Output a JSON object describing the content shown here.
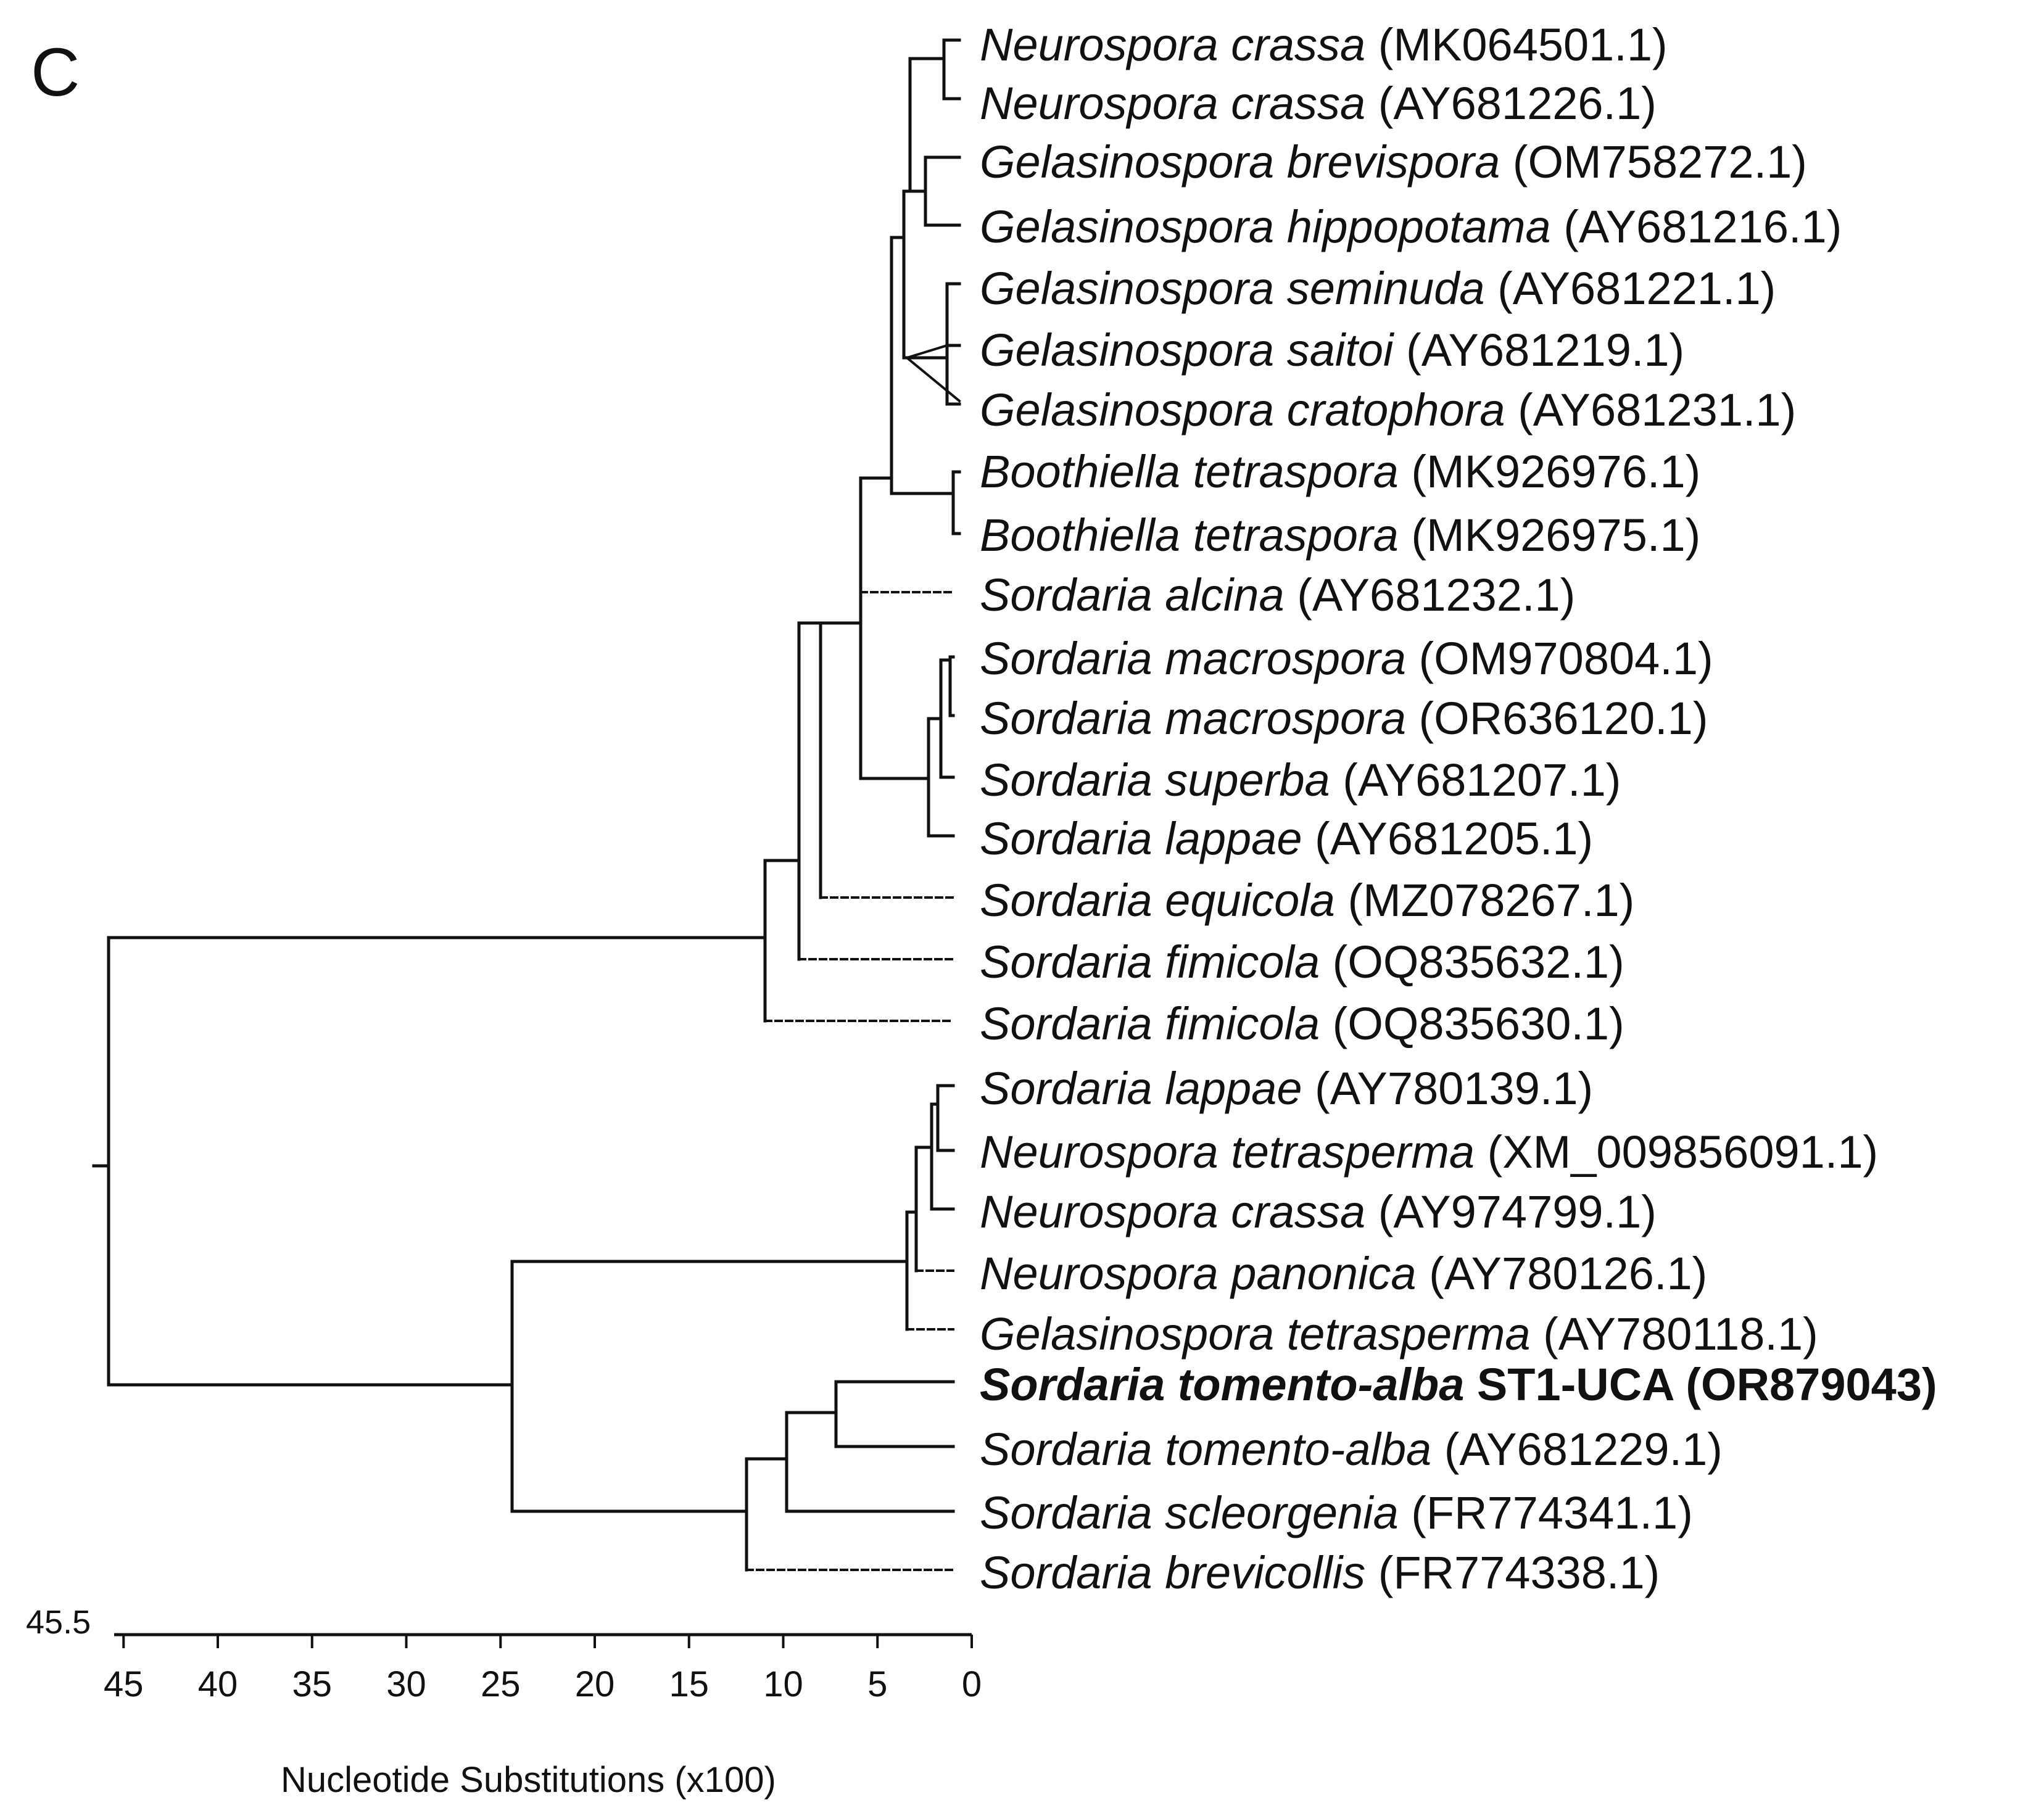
{
  "panel_label": "C",
  "taxa": [
    {
      "id": "t1",
      "genus_species": "Neurospora crassa",
      "accession": "(MK064501.1)"
    },
    {
      "id": "t2",
      "genus_species": "Neurospora crassa",
      "accession": "(AY681226.1)"
    },
    {
      "id": "t3",
      "genus_species": "Gelasinospora brevispora",
      "accession": "(OM758272.1)"
    },
    {
      "id": "t4",
      "genus_species": "Gelasinospora hippopotama",
      "accession": "(AY681216.1)"
    },
    {
      "id": "t5",
      "genus_species": "Gelasinospora seminuda",
      "accession": "(AY681221.1)"
    },
    {
      "id": "t6",
      "genus_species": "Gelasinospora saitoi",
      "accession": "(AY681219.1)"
    },
    {
      "id": "t7",
      "genus_species": "Gelasinospora cratophora",
      "accession": "(AY681231.1)"
    },
    {
      "id": "t8",
      "genus_species": "Boothiella tetraspora",
      "accession": "(MK926976.1)"
    },
    {
      "id": "t9",
      "genus_species": "Boothiella tetraspora",
      "accession": "(MK926975.1)"
    },
    {
      "id": "t10",
      "genus_species": "Sordaria alcina",
      "accession": "(AY681232.1)"
    },
    {
      "id": "t11",
      "genus_species": "Sordaria macrospora",
      "accession": "(OM970804.1)"
    },
    {
      "id": "t12",
      "genus_species": "Sordaria macrospora",
      "accession": "(OR636120.1)"
    },
    {
      "id": "t13",
      "genus_species": "Sordaria superba",
      "accession": "(AY681207.1)"
    },
    {
      "id": "t14",
      "genus_species": "Sordaria lappae",
      "accession": "(AY681205.1)"
    },
    {
      "id": "t15",
      "genus_species": "Sordaria equicola",
      "accession": "(MZ078267.1)"
    },
    {
      "id": "t16",
      "genus_species": "Sordaria fimicola",
      "accession": "(OQ835632.1)"
    },
    {
      "id": "t17",
      "genus_species": "Sordaria fimicola",
      "accession": "(OQ835630.1)"
    },
    {
      "id": "t18",
      "genus_species": "Sordaria lappae",
      "accession": "(AY780139.1)"
    },
    {
      "id": "t19",
      "genus_species": "Neurospora tetrasperma",
      "accession": "(XM_009856091.1)"
    },
    {
      "id": "t20",
      "genus_species": "Neurospora crassa",
      "accession": "(AY974799.1)"
    },
    {
      "id": "t21",
      "genus_species": "Neurospora panonica",
      "accession": "(AY780126.1)"
    },
    {
      "id": "t22",
      "genus_species": "Gelasinospora tetrasperma",
      "accession": "(AY780118.1)"
    },
    {
      "id": "t23",
      "genus_species": "Sordaria tomento-alba",
      "accession": "ST1-UCA (OR879043)",
      "highlight": true
    },
    {
      "id": "t24",
      "genus_species": "Sordaria tomento-alba",
      "accession": "(AY681229.1)"
    },
    {
      "id": "t25",
      "genus_species": "Sordaria scleorgenia",
      "accession": "(FR774341.1)"
    },
    {
      "id": "t26",
      "genus_species": "Sordaria brevicollis",
      "accession": "(FR774338.1)"
    }
  ],
  "scale_axis": {
    "title": "Nucleotide Substitutions (x100)",
    "max_label": "45.5",
    "min": 0,
    "max": 45.5,
    "ticks": [
      "45",
      "40",
      "35",
      "30",
      "25",
      "20",
      "15",
      "10",
      "5",
      "0"
    ]
  }
}
